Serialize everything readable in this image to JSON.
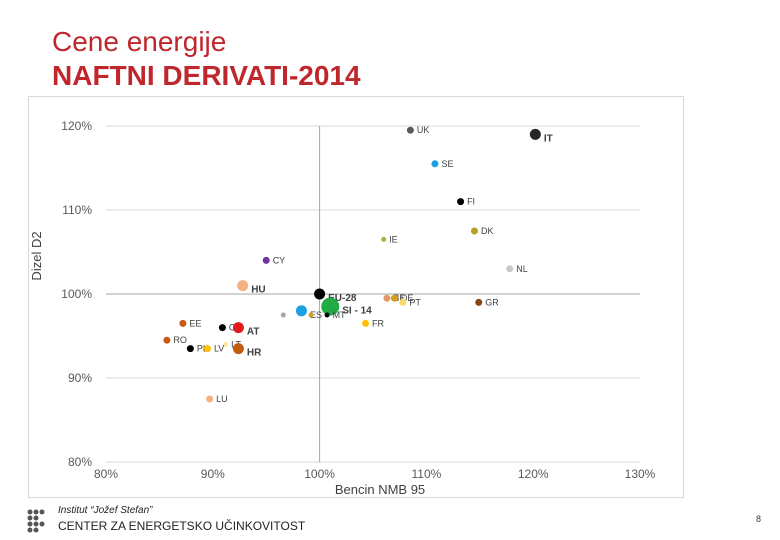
{
  "title_line1": "Cene energije",
  "title_line2": "NAFTNI DERIVATI-2014",
  "footer": {
    "institute": "Institut “Jožef Stefan”",
    "center": "CENTER ZA ENERGETSKO UČINKOVITOST",
    "page": "8"
  },
  "chart_data": {
    "type": "scatter",
    "xlabel": "Bencin NMB 95",
    "ylabel": "Dizel D2",
    "xlim": [
      80,
      130
    ],
    "ylim": [
      80,
      120
    ],
    "xticks": [
      80,
      90,
      100,
      110,
      120,
      130
    ],
    "yticks": [
      80,
      90,
      100,
      110,
      120
    ],
    "xtick_labels": [
      "80%",
      "90%",
      "100%",
      "110%",
      "120%",
      "130%"
    ],
    "ytick_labels": [
      "80%",
      "90%",
      "100%",
      "110%",
      "120%"
    ],
    "reference_lines": {
      "x": 100,
      "y": 100
    },
    "points": [
      {
        "label": "UK",
        "x": 108.5,
        "y": 119.5,
        "color": "#595959",
        "size": "s"
      },
      {
        "label": "IT",
        "x": 120.2,
        "y": 119.0,
        "color": "#262626",
        "size": "m",
        "bold": true
      },
      {
        "label": "SE",
        "x": 110.8,
        "y": 115.5,
        "color": "#1ba1e2",
        "size": "s"
      },
      {
        "label": "FI",
        "x": 113.2,
        "y": 111.0,
        "color": "#000000",
        "size": "s"
      },
      {
        "label": "DK",
        "x": 114.5,
        "y": 107.5,
        "color": "#b8a020",
        "size": "s"
      },
      {
        "label": "IE",
        "x": 106.0,
        "y": 106.5,
        "color": "#8fbf3f",
        "size": "xs"
      },
      {
        "label": "CY",
        "x": 95.0,
        "y": 104.0,
        "color": "#7030a0",
        "size": "s"
      },
      {
        "label": "NL",
        "x": 117.8,
        "y": 103.0,
        "color": "#c8c8c8",
        "size": "s"
      },
      {
        "label": "HU",
        "x": 92.8,
        "y": 101.0,
        "color": "#f4b183",
        "size": "m",
        "bold": true
      },
      {
        "label": "EU-28",
        "x": 100.0,
        "y": 100.0,
        "color": "#000000",
        "size": "m",
        "bold": true
      },
      {
        "label": "BE",
        "x": 106.3,
        "y": 99.5,
        "color": "#e59866",
        "size": "s"
      },
      {
        "label": "DE",
        "x": 107.0,
        "y": 99.5,
        "color": "#d4a017",
        "size": "s"
      },
      {
        "label": "PT",
        "x": 107.8,
        "y": 99.0,
        "color": "#ffd966",
        "size": "s"
      },
      {
        "label": "GR",
        "x": 114.9,
        "y": 99.0,
        "color": "#8b4513",
        "size": "s"
      },
      {
        "label": "SI - 14",
        "x": 101.0,
        "y": 98.5,
        "color": "#22aa44",
        "size": "l",
        "bold": true
      },
      {
        "label": "ES",
        "x": 98.3,
        "y": 98.0,
        "color": "#1ba1e2",
        "size": "m"
      },
      {
        "label": "",
        "x": 96.6,
        "y": 97.5,
        "color": "#a6a6a6",
        "size": "xs"
      },
      {
        "label": "",
        "x": 99.2,
        "y": 97.5,
        "color": "#c9a227",
        "size": "xs"
      },
      {
        "label": "MT",
        "x": 100.7,
        "y": 97.5,
        "color": "#000000",
        "size": "xs"
      },
      {
        "label": "FR",
        "x": 104.3,
        "y": 96.5,
        "color": "#ffc000",
        "size": "s"
      },
      {
        "label": "EE",
        "x": 87.2,
        "y": 96.5,
        "color": "#c55a11",
        "size": "s"
      },
      {
        "label": "CZ",
        "x": 90.9,
        "y": 96.0,
        "color": "#000000",
        "size": "s"
      },
      {
        "label": "AT",
        "x": 92.4,
        "y": 96.0,
        "color": "#e31a1c",
        "size": "m",
        "bold": true
      },
      {
        "label": "RO",
        "x": 85.7,
        "y": 94.5,
        "color": "#c55a11",
        "size": "s"
      },
      {
        "label": "LT",
        "x": 91.2,
        "y": 94.0,
        "color": "#ffe699",
        "size": "xs"
      },
      {
        "label": "PL",
        "x": 87.9,
        "y": 93.5,
        "color": "#000000",
        "size": "s"
      },
      {
        "label": "LV",
        "x": 89.5,
        "y": 93.5,
        "color": "#ffc000",
        "size": "s"
      },
      {
        "label": "HR",
        "x": 92.4,
        "y": 93.5,
        "color": "#c55a11",
        "size": "m",
        "bold": true
      },
      {
        "label": "LU",
        "x": 89.7,
        "y": 87.5,
        "color": "#f4b183",
        "size": "s"
      }
    ]
  }
}
